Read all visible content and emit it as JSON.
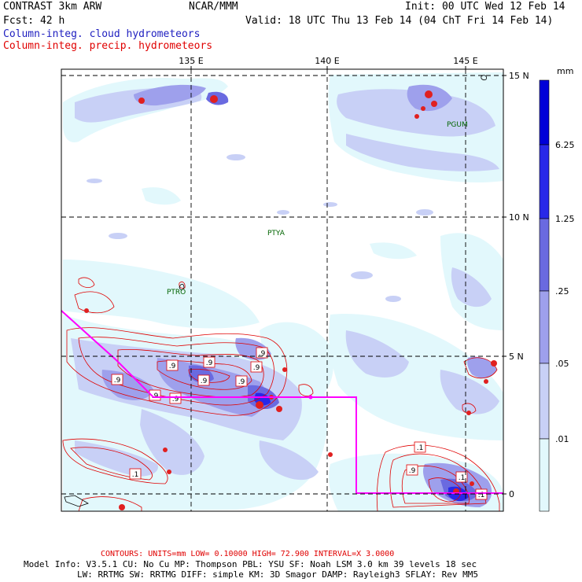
{
  "header": {
    "left1": "CONTRAST  3km ARW",
    "center": "NCAR/MMM",
    "right1": "Init: 00 UTC Wed 12 Feb 14",
    "left2": "Fcst:   42 h",
    "right2": "Valid: 18 UTC Thu 13 Feb 14 (04 ChT Fri 14 Feb 14)",
    "legend_cloud": "Column-integ. cloud hydrometeors",
    "legend_precip": "Column-integ. precip. hydrometeors"
  },
  "map": {
    "lon_labels": [
      "135 E",
      "140 E",
      "145 E"
    ],
    "lat_labels": [
      "15 N",
      "10 N",
      "5 N",
      "0"
    ],
    "stations": [
      "PGUM",
      "PTYA",
      "PTRO"
    ],
    "contour_labels": [
      ".9",
      ".9",
      ".9",
      ".9",
      ".9",
      ".9",
      ".9",
      ".9",
      ".9",
      ".1",
      ".1",
      ".1",
      ".9",
      ".1"
    ]
  },
  "colorbar": {
    "unit": "mm",
    "ticks": [
      "6.25",
      "1.25",
      ".25",
      ".05",
      ".01"
    ],
    "colors": [
      "#0000d8",
      "#2828e8",
      "#6a6ae0",
      "#9ea0ec",
      "#c8d0f6",
      "#e2f8fc",
      "#ffffff"
    ]
  },
  "footer": {
    "contours": "CONTOURS:  UNITS=mm  LOW= 0.10000     HIGH= 72.900     INTERVAL=X  3.0000",
    "model1": "Model Info: V3.5.1    CU: No Cu    MP: Thompson    PBL: YSU      SF: Noah LSM    3.0 km   39 levels   18 sec",
    "model2": "LW: RRTMG    SW: RRTMG  DIFF: simple KM: 3D Smagor DAMP: Rayleigh3  SFLAY: Rev MM5"
  }
}
